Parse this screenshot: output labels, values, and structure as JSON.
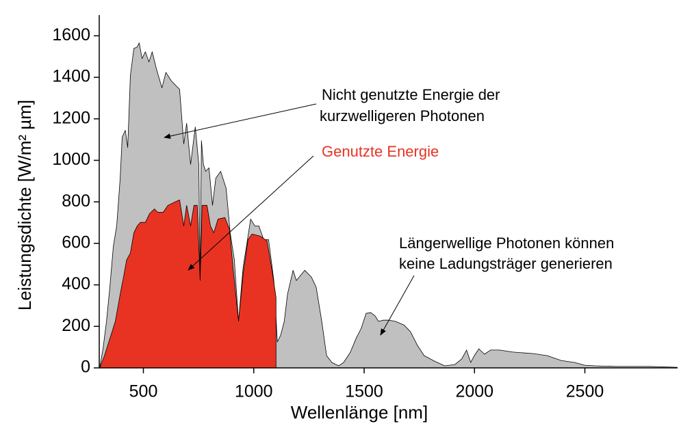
{
  "chart_data": {
    "type": "area",
    "xlabel": "Wellenlänge [nm]",
    "ylabel": "Leistungsdichte [W/m² µm]",
    "annotations": [
      "Nicht genutzte Energie der",
      "kurzwelligeren Photonen",
      "Genutzte Energie",
      "Längerwellige Photonen können",
      "keine Ladungsträger generieren"
    ],
    "xlim": [
      300,
      2920
    ],
    "xticks": [
      500,
      1000,
      1500,
      2000,
      2500
    ],
    "ylim": [
      0,
      1700
    ],
    "yticks": [
      0,
      200,
      400,
      600,
      800,
      1000,
      1200,
      1400,
      1600
    ],
    "series": [
      {
        "color": "#c0c0c0",
        "x": [
          302,
          317,
          333,
          348,
          364,
          379,
          395,
          404,
          418,
          429,
          441,
          457,
          472,
          481,
          494,
          509,
          525,
          540,
          559,
          584,
          602,
          627,
          664,
          683,
          696,
          714,
          735,
          751,
          757,
          763,
          772,
          782,
          797,
          813,
          828,
          850,
          875,
          893,
          912,
          931,
          952,
          967,
          986,
          1005,
          1023,
          1045,
          1067,
          1091,
          1107,
          1122,
          1138,
          1153,
          1178,
          1193,
          1231,
          1261,
          1283,
          1308,
          1330,
          1354,
          1385,
          1407,
          1438,
          1463,
          1487,
          1509,
          1531,
          1550,
          1565,
          1587,
          1611,
          1642,
          1680,
          1710,
          1741,
          1772,
          1818,
          1865,
          1911,
          1942,
          1964,
          1983,
          1999,
          2020,
          2045,
          2073,
          2113,
          2175,
          2268,
          2330,
          2392,
          2454,
          2500,
          2547,
          2640,
          2795,
          2918
        ],
        "values": [
          0,
          92,
          224,
          388,
          586,
          684,
          914,
          1112,
          1145,
          1062,
          1408,
          1539,
          1546,
          1566,
          1490,
          1523,
          1474,
          1523,
          1441,
          1349,
          1424,
          1382,
          1342,
          1079,
          1178,
          980,
          1161,
          980,
          421,
          1095,
          980,
          947,
          964,
          783,
          914,
          947,
          865,
          651,
          520,
          224,
          487,
          586,
          717,
          684,
          684,
          618,
          618,
          421,
          125,
          158,
          224,
          355,
          470,
          421,
          470,
          438,
          388,
          224,
          59,
          26,
          10,
          26,
          76,
          141,
          191,
          263,
          266,
          250,
          224,
          230,
          230,
          224,
          207,
          174,
          109,
          59,
          33,
          10,
          16,
          43,
          86,
          26,
          59,
          92,
          66,
          86,
          86,
          76,
          69,
          59,
          36,
          26,
          13,
          10,
          7,
          7,
          3
        ]
      },
      {
        "color": "#e83323",
        "x": [
          302,
          324,
          348,
          373,
          395,
          410,
          424,
          441,
          457,
          472,
          487,
          509,
          528,
          550,
          565,
          590,
          611,
          642,
          664,
          683,
          696,
          714,
          729,
          744,
          757,
          766,
          788,
          804,
          819,
          838,
          869,
          890,
          906,
          931,
          952,
          974,
          992,
          1029,
          1060,
          1085,
          1101,
          1101
        ],
        "values": [
          0,
          59,
          141,
          224,
          355,
          438,
          520,
          553,
          651,
          684,
          701,
          701,
          743,
          766,
          750,
          750,
          783,
          799,
          809,
          684,
          783,
          684,
          783,
          783,
          421,
          783,
          783,
          684,
          651,
          717,
          724,
          668,
          487,
          224,
          454,
          618,
          645,
          635,
          612,
          454,
          339,
          0
        ]
      }
    ]
  }
}
